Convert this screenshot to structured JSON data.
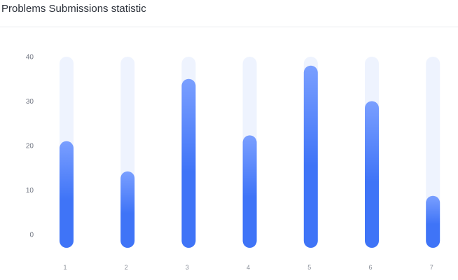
{
  "header": {
    "title": "Problems Submissions statistic"
  },
  "chart_data": {
    "type": "bar",
    "title": "Problems Submissions statistic",
    "xlabel": "",
    "ylabel": "",
    "categories": [
      "1",
      "2",
      "3",
      "4",
      "5",
      "6",
      "7"
    ],
    "values": [
      21,
      14.2,
      35,
      22.3,
      38,
      30,
      8.7
    ],
    "ylim": [
      -3,
      40
    ],
    "yticks": [
      0,
      10,
      20,
      30,
      40
    ],
    "grid": false,
    "legend": "none",
    "colors": {
      "bar_top": "#7a9fff",
      "bar_bottom": "#3f74f7",
      "track": "#eef3fe",
      "tick_text": "#6f7480"
    }
  }
}
